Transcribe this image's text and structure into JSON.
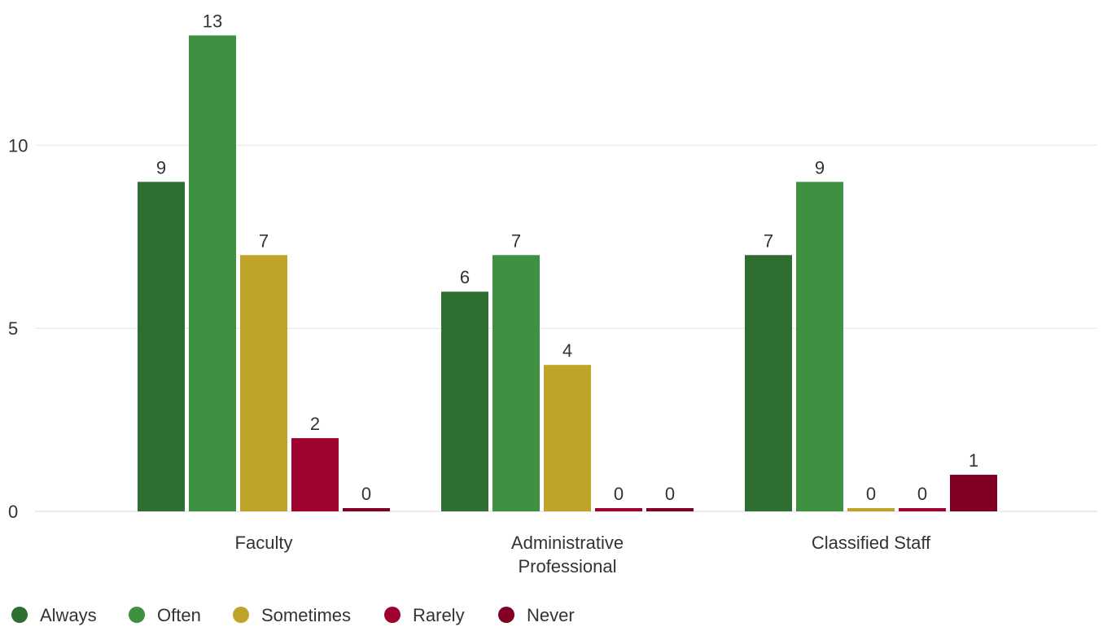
{
  "chart_data": {
    "type": "bar",
    "categories": [
      [
        "Faculty"
      ],
      [
        "Administrative",
        "Professional"
      ],
      [
        "Classified Staff"
      ]
    ],
    "series": [
      {
        "name": "Always",
        "color": "#2e6e30",
        "values": [
          9,
          6,
          7
        ]
      },
      {
        "name": "Often",
        "color": "#3e9140",
        "values": [
          13,
          7,
          9
        ]
      },
      {
        "name": "Sometimes",
        "color": "#c0a42a",
        "values": [
          7,
          4,
          0
        ]
      },
      {
        "name": "Rarely",
        "color": "#9e0330",
        "values": [
          2,
          0,
          0
        ]
      },
      {
        "name": "Never",
        "color": "#820024",
        "values": [
          0,
          0,
          1
        ]
      }
    ],
    "yticks": [
      0,
      5,
      10
    ],
    "ylim": [
      0,
      13.3
    ],
    "grid": true,
    "legend_position": "bottom-left",
    "data_labels": true
  }
}
